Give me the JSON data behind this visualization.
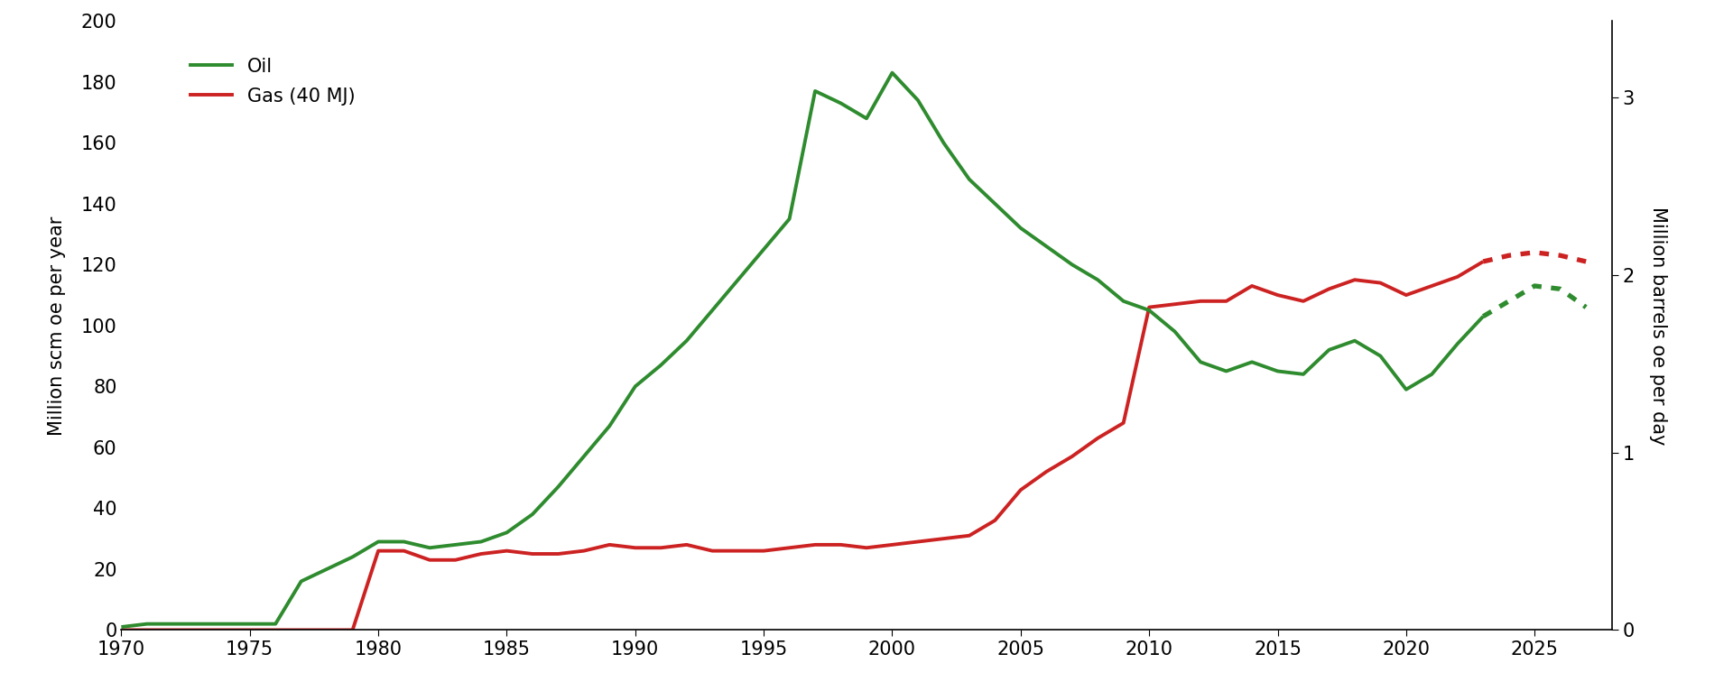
{
  "oil_historical": {
    "years": [
      1970,
      1971,
      1972,
      1973,
      1974,
      1975,
      1976,
      1977,
      1978,
      1979,
      1980,
      1981,
      1982,
      1983,
      1984,
      1985,
      1986,
      1987,
      1988,
      1989,
      1990,
      1991,
      1992,
      1993,
      1994,
      1995,
      1996,
      1997,
      1998,
      1999,
      2000,
      2001,
      2002,
      2003,
      2004,
      2005,
      2006,
      2007,
      2008,
      2009,
      2010,
      2011,
      2012,
      2013,
      2014,
      2015,
      2016,
      2017,
      2018,
      2019,
      2020,
      2021,
      2022,
      2023
    ],
    "values": [
      1,
      2,
      2,
      2,
      2,
      2,
      2,
      16,
      20,
      24,
      29,
      29,
      27,
      28,
      29,
      32,
      38,
      47,
      57,
      67,
      80,
      87,
      95,
      105,
      115,
      125,
      135,
      177,
      173,
      168,
      183,
      174,
      160,
      148,
      140,
      132,
      126,
      120,
      115,
      108,
      105,
      98,
      88,
      85,
      88,
      85,
      84,
      92,
      95,
      90,
      79,
      84,
      94,
      103
    ],
    "color": "#2e8b2e",
    "linewidth": 2.8
  },
  "oil_forecast": {
    "years": [
      2023,
      2024,
      2025,
      2026,
      2027
    ],
    "values": [
      103,
      108,
      113,
      112,
      106
    ],
    "color": "#2e8b2e",
    "linewidth": 2.8
  },
  "gas_historical": {
    "years": [
      1970,
      1971,
      1972,
      1973,
      1974,
      1975,
      1976,
      1977,
      1978,
      1979,
      1980,
      1981,
      1982,
      1983,
      1984,
      1985,
      1986,
      1987,
      1988,
      1989,
      1990,
      1991,
      1992,
      1993,
      1994,
      1995,
      1996,
      1997,
      1998,
      1999,
      2000,
      2001,
      2002,
      2003,
      2004,
      2005,
      2006,
      2007,
      2008,
      2009,
      2010,
      2011,
      2012,
      2013,
      2014,
      2015,
      2016,
      2017,
      2018,
      2019,
      2020,
      2021,
      2022,
      2023
    ],
    "values": [
      0,
      0,
      0,
      0,
      0,
      0,
      0,
      0,
      0,
      0,
      26,
      26,
      23,
      23,
      25,
      26,
      25,
      25,
      26,
      28,
      27,
      27,
      28,
      26,
      26,
      26,
      27,
      28,
      28,
      27,
      28,
      29,
      30,
      31,
      36,
      46,
      52,
      57,
      63,
      68,
      106,
      107,
      108,
      108,
      113,
      110,
      108,
      112,
      115,
      114,
      110,
      113,
      116,
      121
    ],
    "color": "#cc2222",
    "linewidth": 2.8
  },
  "gas_forecast": {
    "years": [
      2023,
      2024,
      2025,
      2026,
      2027
    ],
    "values": [
      121,
      123,
      124,
      123,
      121
    ],
    "color": "#cc2222",
    "linewidth": 2.8
  },
  "ylim_left": [
    0,
    200
  ],
  "ylim_right": [
    0,
    3.43
  ],
  "xlim": [
    1970,
    2028
  ],
  "ylabel_left": "Million scm oe per year",
  "ylabel_right": "Million barrels oe per day",
  "yticks_left": [
    0,
    20,
    40,
    60,
    80,
    100,
    120,
    140,
    160,
    180,
    200
  ],
  "yticks_right": [
    0,
    1,
    2,
    3
  ],
  "xticks": [
    1970,
    1975,
    1980,
    1985,
    1990,
    1995,
    2000,
    2005,
    2010,
    2015,
    2020,
    2025
  ],
  "legend_oil": "Oil",
  "legend_gas": "Gas (40 MJ)",
  "background_color": "#ffffff"
}
